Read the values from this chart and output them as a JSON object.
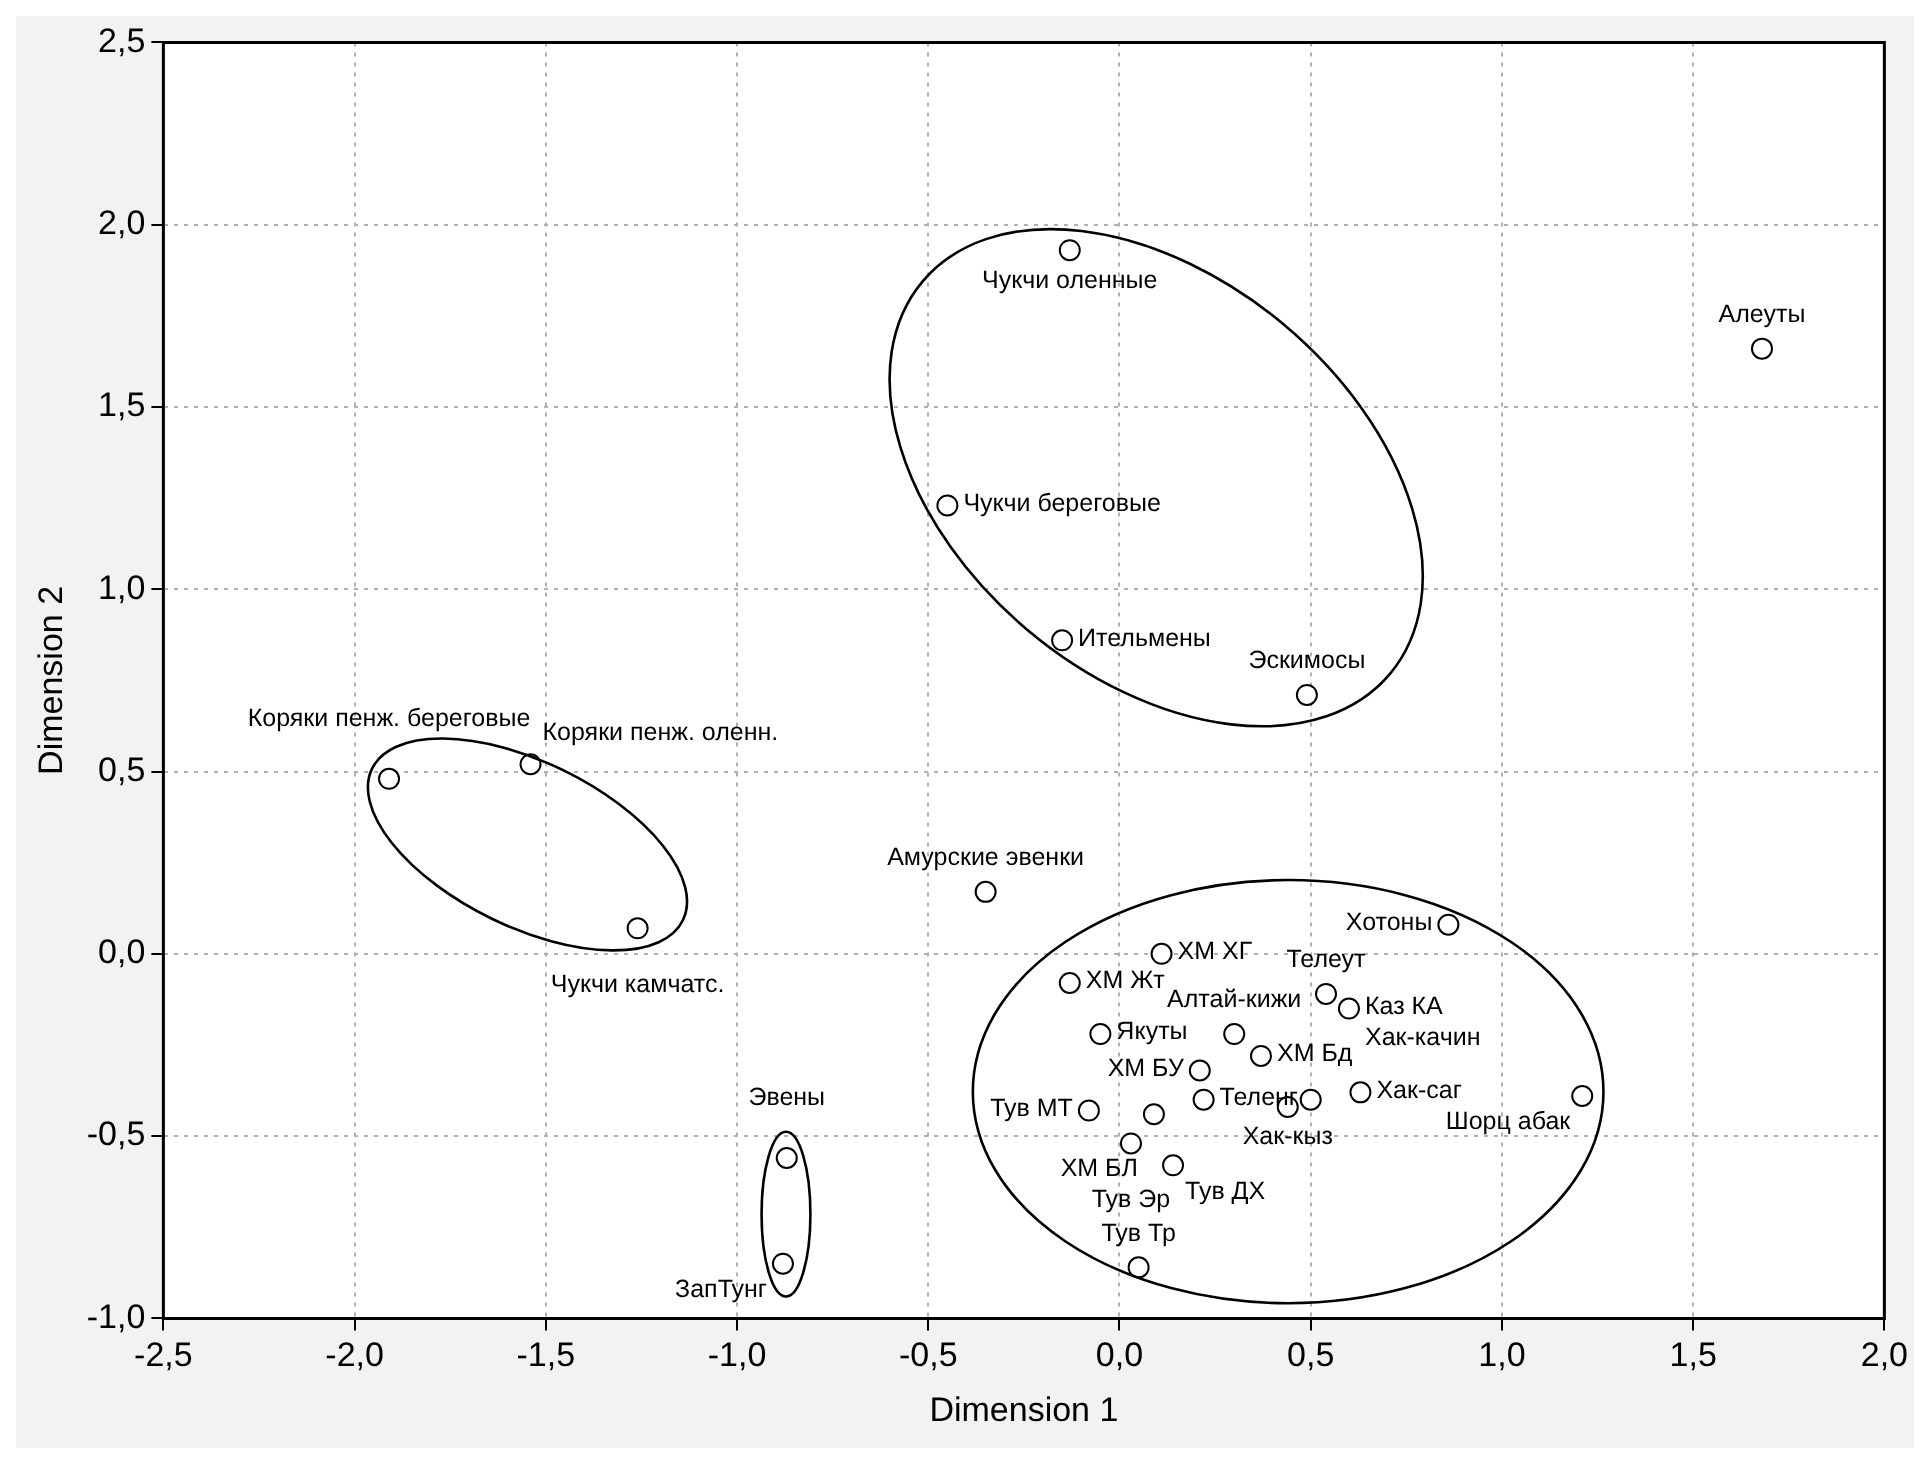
{
  "chart_data": {
    "type": "scatter",
    "xlabel": "Dimension 1",
    "ylabel": "Dimension 2",
    "xlim": [
      -2.5,
      2.0
    ],
    "ylim": [
      -1.0,
      2.5
    ],
    "xticks": [
      {
        "value": -2.5,
        "label": "-2,5"
      },
      {
        "value": -2.0,
        "label": "-2,0"
      },
      {
        "value": -1.5,
        "label": "-1,5"
      },
      {
        "value": -1.0,
        "label": "-1,0"
      },
      {
        "value": -0.5,
        "label": "-0,5"
      },
      {
        "value": 0.0,
        "label": "0,0"
      },
      {
        "value": 0.5,
        "label": "0,5"
      },
      {
        "value": 1.0,
        "label": "1,0"
      },
      {
        "value": 1.5,
        "label": "1,5"
      },
      {
        "value": 2.0,
        "label": "2,0"
      }
    ],
    "yticks": [
      {
        "value": -1.0,
        "label": "-1,0"
      },
      {
        "value": -0.5,
        "label": "-0,5"
      },
      {
        "value": 0.0,
        "label": "0,0"
      },
      {
        "value": 0.5,
        "label": "0,5"
      },
      {
        "value": 1.0,
        "label": "1,0"
      },
      {
        "value": 1.5,
        "label": "1,5"
      },
      {
        "value": 2.0,
        "label": "2,0"
      },
      {
        "value": 2.5,
        "label": "2,5"
      }
    ],
    "grid": true,
    "marker": "circle",
    "legend": false,
    "series": [
      {
        "color": "#000000",
        "x": [
          -0.13,
          1.68,
          -0.45,
          -0.15,
          0.49,
          -1.91,
          -1.54,
          -1.26,
          -0.87,
          -0.88,
          -0.35,
          0.86,
          0.11,
          -0.13,
          -0.05,
          0.3,
          0.37,
          0.54,
          0.6,
          0.63,
          0.44,
          0.5,
          0.21,
          0.22,
          -0.08,
          0.09,
          0.03,
          0.14,
          0.05,
          1.21
        ],
        "values": [
          1.93,
          1.66,
          1.23,
          0.86,
          0.71,
          0.48,
          0.52,
          0.07,
          -0.56,
          -0.85,
          0.17,
          0.08,
          0.0,
          -0.08,
          -0.22,
          -0.22,
          -0.28,
          -0.11,
          -0.15,
          -0.38,
          -0.42,
          -0.4,
          -0.32,
          -0.4,
          -0.43,
          -0.44,
          -0.52,
          -0.58,
          -0.86,
          -0.39
        ]
      }
    ],
    "annotations": [
      {
        "text": "Чукчи оленные",
        "x": -0.13,
        "y": 1.93
      },
      {
        "text": "Алеуты",
        "x": 1.68,
        "y": 1.66
      },
      {
        "text": "Чукчи береговые",
        "x": -0.45,
        "y": 1.23
      },
      {
        "text": "Ительмены",
        "x": -0.15,
        "y": 0.86
      },
      {
        "text": "Эскимосы",
        "x": 0.49,
        "y": 0.71
      },
      {
        "text": "Коряки пенж. береговые",
        "x": -1.91,
        "y": 0.48
      },
      {
        "text": "Коряки пенж. оленн.",
        "x": -1.54,
        "y": 0.52
      },
      {
        "text": "Чукчи камчатс.",
        "x": -1.26,
        "y": 0.07
      },
      {
        "text": "Эвены",
        "x": -0.87,
        "y": -0.56
      },
      {
        "text": "ЗапТунг",
        "x": -0.88,
        "y": -0.85
      },
      {
        "text": "Амурские эвенки",
        "x": -0.35,
        "y": 0.17
      },
      {
        "text": "Хотоны",
        "x": 0.86,
        "y": 0.08
      },
      {
        "text": "ХМ ХГ",
        "x": 0.11,
        "y": 0.0
      },
      {
        "text": "ХМ Жт",
        "x": -0.13,
        "y": -0.08
      },
      {
        "text": "Якуты",
        "x": -0.05,
        "y": -0.22
      },
      {
        "text": "Алтай-кижи",
        "x": 0.3,
        "y": -0.22
      },
      {
        "text": "ХМ Бд",
        "x": 0.37,
        "y": -0.28
      },
      {
        "text": "Телеут",
        "x": 0.54,
        "y": -0.11
      },
      {
        "text": "Каз КА",
        "x": 0.6,
        "y": -0.15
      },
      {
        "text": "Хак-саг",
        "x": 0.63,
        "y": -0.38
      },
      {
        "text": "Хак-кыз",
        "x": 0.44,
        "y": -0.42
      },
      {
        "text": "Хак-качин",
        "x": 0.5,
        "y": -0.4
      },
      {
        "text": "ХМ БУ",
        "x": 0.21,
        "y": -0.32
      },
      {
        "text": "Теленг",
        "x": 0.22,
        "y": -0.4
      },
      {
        "text": "Тув МТ",
        "x": -0.08,
        "y": -0.43
      },
      {
        "text": "ХМ БЛ",
        "x": 0.09,
        "y": -0.44
      },
      {
        "text": "Тув Эр",
        "x": 0.03,
        "y": -0.52
      },
      {
        "text": "Тув ДХ",
        "x": 0.14,
        "y": -0.58
      },
      {
        "text": "Тув Тр",
        "x": 0.05,
        "y": -0.86
      },
      {
        "text": "Шорц абак",
        "x": 1.21,
        "y": -0.39
      }
    ]
  }
}
